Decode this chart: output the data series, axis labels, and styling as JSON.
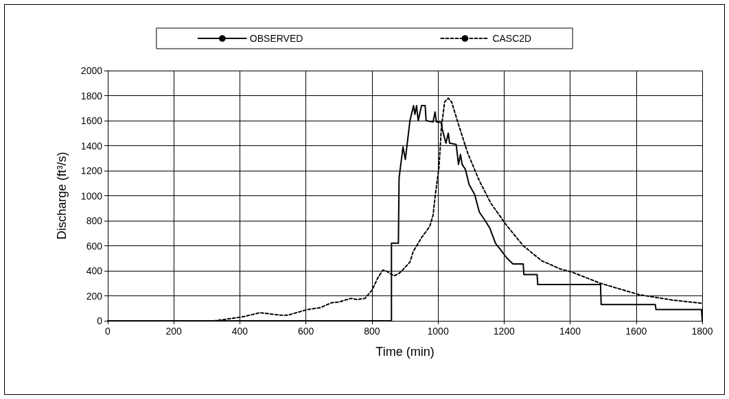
{
  "chart_data": {
    "type": "line",
    "xlabel": "Time (min)",
    "ylabel": "Discharge (ft³/s)",
    "xlim": [
      0,
      1800
    ],
    "xticks": [
      0,
      200,
      400,
      600,
      800,
      1000,
      1200,
      1400,
      1600,
      1800
    ],
    "ylim": [
      0,
      2000
    ],
    "yticks": [
      0,
      200,
      400,
      600,
      800,
      1000,
      1200,
      1400,
      1600,
      1800,
      2000
    ],
    "grid": true,
    "legend": "top",
    "marker": "none",
    "series": [
      {
        "name": "OBSERVED",
        "color": "#000000",
        "line_style": "solid",
        "x": [
          0,
          859,
          859,
          864,
          880,
          882,
          894,
          901,
          915,
          926,
          930,
          935,
          940,
          950,
          961,
          964,
          985,
          991,
          995,
          1010,
          1013,
          1024,
          1031,
          1035,
          1055,
          1062,
          1068,
          1073,
          1083,
          1094,
          1111,
          1125,
          1143,
          1157,
          1174,
          1192,
          1209,
          1227,
          1258,
          1260,
          1300,
          1302,
          1492,
          1494,
          1658,
          1660,
          1798,
          1800
        ],
        "values": [
          0,
          0,
          620,
          620,
          620,
          1140,
          1390,
          1290,
          1600,
          1720,
          1650,
          1720,
          1600,
          1720,
          1720,
          1600,
          1590,
          1670,
          1590,
          1585,
          1530,
          1420,
          1500,
          1420,
          1410,
          1250,
          1330,
          1250,
          1210,
          1090,
          1010,
          870,
          800,
          740,
          620,
          560,
          500,
          455,
          455,
          370,
          370,
          290,
          290,
          130,
          130,
          90,
          90,
          0
        ]
      },
      {
        "name": "CASC2D",
        "color": "#000000",
        "line_style": "dashed",
        "x": [
          0,
          321,
          405,
          461,
          524,
          545,
          604,
          643,
          678,
          699,
          737,
          755,
          779,
          800,
          818,
          833,
          842,
          866,
          880,
          894,
          915,
          925,
          950,
          975,
          985,
          992,
          1003,
          1010,
          1020,
          1031,
          1041,
          1062,
          1090,
          1125,
          1160,
          1207,
          1258,
          1314,
          1370,
          1405,
          1492,
          1608,
          1712,
          1800
        ],
        "values": [
          0,
          0,
          30,
          65,
          45,
          45,
          90,
          105,
          145,
          150,
          180,
          170,
          180,
          245,
          345,
          405,
          400,
          360,
          375,
          410,
          470,
          555,
          665,
          755,
          845,
          1010,
          1230,
          1540,
          1750,
          1780,
          1750,
          1570,
          1340,
          1120,
          940,
          765,
          600,
          480,
          415,
          390,
          300,
          210,
          165,
          140
        ]
      }
    ]
  }
}
